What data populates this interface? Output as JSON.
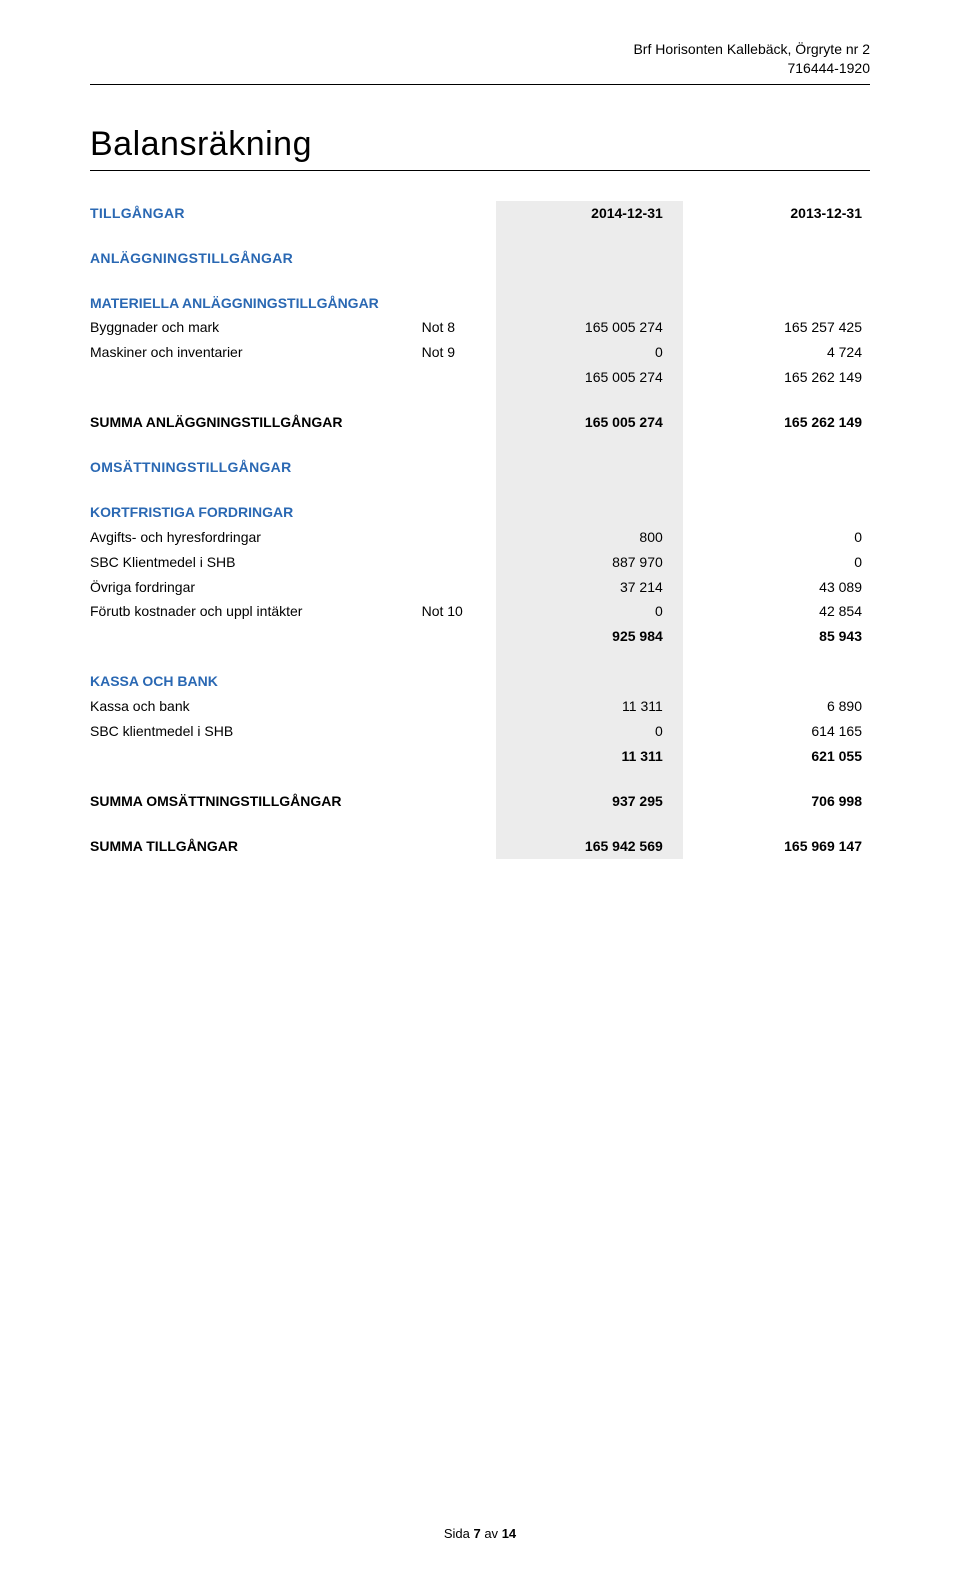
{
  "colors": {
    "heading_blue": "#2a68b3",
    "shade_gray": "#ececec",
    "text_black": "#000000",
    "background": "#ffffff"
  },
  "fonts": {
    "body_size_pt": 11,
    "title_size_pt": 26,
    "family": "Segoe UI / Helvetica Neue / Arial"
  },
  "header": {
    "name": "Brf Horisonten Kallebäck, Örgryte nr 2",
    "org_no": "716444-1920"
  },
  "title": "Balansräkning",
  "columns": {
    "year1": "2014-12-31",
    "year2": "2013-12-31"
  },
  "sections": {
    "tillgangar": "TILLGÅNGAR",
    "anlaggning": "ANLÄGGNINGSTILLGÅNGAR",
    "materiella": "MATERIELLA ANLÄGGNINGSTILLGÅNGAR",
    "summa_anl": "SUMMA ANLÄGGNINGSTILLGÅNGAR",
    "omsattning": "OMSÄTTNINGSTILLGÅNGAR",
    "kortfristiga": "KORTFRISTIGA FORDRINGAR",
    "kassa": "KASSA OCH BANK",
    "summa_oms": "SUMMA OMSÄTTNINGSTILLGÅNGAR",
    "summa_till": "SUMMA TILLGÅNGAR"
  },
  "rows": {
    "byggnader": {
      "label": "Byggnader och mark",
      "note": "Not 8",
      "y1": "165 005 274",
      "y2": "165 257 425"
    },
    "maskiner": {
      "label": "Maskiner och inventarier",
      "note": "Not 9",
      "y1": "0",
      "y2": "4 724"
    },
    "mat_sub": {
      "label": "",
      "note": "",
      "y1": "165 005 274",
      "y2": "165 262 149"
    },
    "summa_anl": {
      "y1": "165 005 274",
      "y2": "165 262 149"
    },
    "avgifts": {
      "label": "Avgifts- och hyresfordringar",
      "note": "",
      "y1": "800",
      "y2": "0"
    },
    "sbc_klient": {
      "label": "SBC Klientmedel i SHB",
      "note": "",
      "y1": "887 970",
      "y2": "0"
    },
    "ovriga": {
      "label": "Övriga fordringar",
      "note": "",
      "y1": "37 214",
      "y2": "43 089"
    },
    "forutb": {
      "label": "Förutb kostnader och uppl intäkter",
      "note": "Not 10",
      "y1": "0",
      "y2": "42 854"
    },
    "kort_sub": {
      "label": "",
      "note": "",
      "y1": "925 984",
      "y2": "85 943"
    },
    "kassa_bank": {
      "label": "Kassa och bank",
      "note": "",
      "y1": "11 311",
      "y2": "6 890"
    },
    "sbc_klient2": {
      "label": "SBC klientmedel i SHB",
      "note": "",
      "y1": "0",
      "y2": "614 165"
    },
    "kassa_sub": {
      "label": "",
      "note": "",
      "y1": "11 311",
      "y2": "621 055"
    },
    "summa_oms": {
      "y1": "937 295",
      "y2": "706 998"
    },
    "summa_till": {
      "y1": "165 942 569",
      "y2": "165 969 147"
    }
  },
  "footer": {
    "prefix": "Sida ",
    "page": "7",
    "mid": " av ",
    "total": "14"
  }
}
